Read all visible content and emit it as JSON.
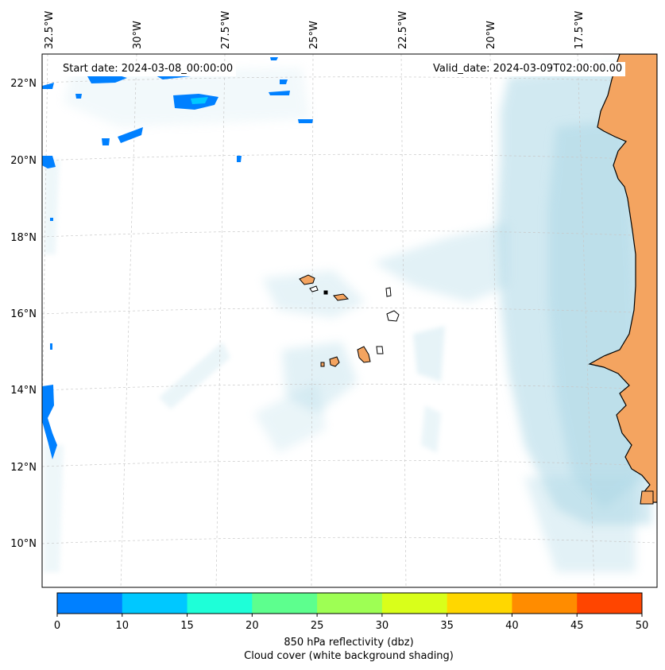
{
  "map": {
    "start_date": "Start date: 2024-03-08_00:00:00",
    "valid_date": "Valid_date: 2024-03-09T02:00:00.00",
    "lon_labels": [
      "32.5°W",
      "30°W",
      "27.5°W",
      "25°W",
      "22.5°W",
      "20°W",
      "17.5°W"
    ],
    "lat_labels": [
      "22°N",
      "20°N",
      "18°N",
      "16°N",
      "14°N",
      "12°N",
      "10°N"
    ],
    "gridlines": true,
    "colors": {
      "land": "#f4a460",
      "cloud": "#add8e6",
      "reflectivity_low": "#0080ff"
    }
  },
  "colorbar": {
    "ticks": [
      "0",
      "10",
      "15",
      "20",
      "25",
      "30",
      "35",
      "40",
      "45",
      "50"
    ],
    "colors": [
      "#0080ff",
      "#00c8ff",
      "#1effd8",
      "#5dff8e",
      "#9eff54",
      "#d9ff1a",
      "#ffd700",
      "#ff8c00",
      "#ff4500"
    ],
    "label_line1": "850 hPa reflectivity (dbz)",
    "label_line2": "Cloud cover (white background shading)"
  }
}
